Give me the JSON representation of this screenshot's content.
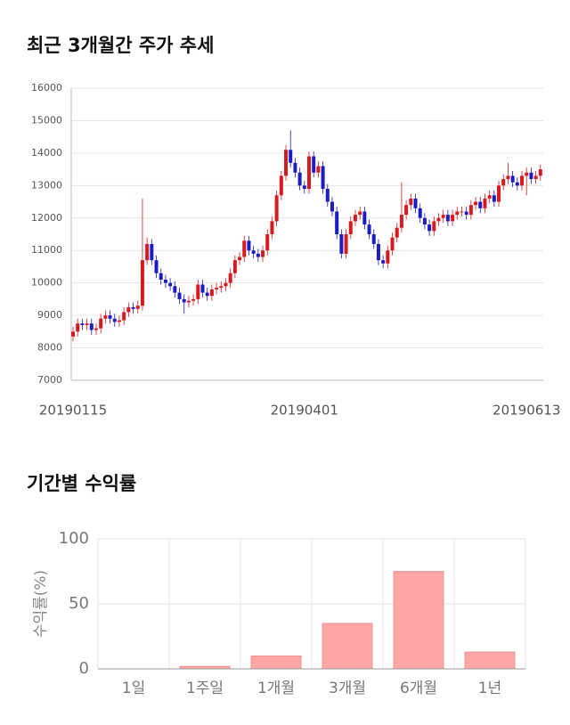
{
  "chart_data": [
    {
      "type": "candlestick",
      "title": "최근 3개월간 주가 추세",
      "categories": [
        "20190115",
        null,
        null,
        null,
        null,
        null,
        null,
        null,
        null,
        null,
        null,
        null,
        null,
        null,
        null,
        null,
        null,
        null,
        null,
        null,
        null,
        null,
        null,
        null,
        null,
        null,
        null,
        null,
        null,
        null,
        null,
        null,
        null,
        null,
        null,
        null,
        null,
        null,
        null,
        null,
        null,
        null,
        null,
        null,
        null,
        null,
        null,
        null,
        null,
        null,
        "20190401",
        null,
        null,
        null,
        null,
        null,
        null,
        null,
        null,
        null,
        null,
        null,
        null,
        null,
        null,
        null,
        null,
        null,
        null,
        null,
        null,
        null,
        null,
        null,
        null,
        null,
        null,
        null,
        null,
        null,
        null,
        null,
        null,
        null,
        null,
        null,
        null,
        null,
        null,
        null,
        null,
        null,
        null,
        null,
        null,
        null,
        null,
        null,
        "20190613",
        null,
        null,
        null
      ],
      "open": [
        8350,
        8500,
        8750,
        8700,
        8750,
        8550,
        8600,
        8900,
        9000,
        8900,
        8800,
        8850,
        9100,
        9250,
        9200,
        9300,
        10700,
        11200,
        10700,
        10300,
        10100,
        10000,
        9900,
        9700,
        9500,
        9400,
        9450,
        9500,
        9950,
        9700,
        9600,
        9800,
        9850,
        9900,
        10000,
        10300,
        10700,
        10800,
        11300,
        11000,
        10900,
        10800,
        11000,
        11500,
        11900,
        12700,
        13300,
        14100,
        13700,
        13400,
        13000,
        12900,
        13900,
        13400,
        13600,
        12900,
        12500,
        12200,
        11500,
        10900,
        11500,
        11900,
        12100,
        12200,
        11800,
        11500,
        11200,
        10700,
        10600,
        11000,
        11400,
        11700,
        12100,
        12400,
        12600,
        12300,
        12000,
        11800,
        11600,
        11900,
        12000,
        12100,
        11900,
        12100,
        12200,
        12200,
        12100,
        12400,
        12500,
        12300,
        12600,
        12700,
        12500,
        13000,
        13200,
        13300,
        13100,
        13000,
        13300,
        13400,
        13200,
        13300
      ],
      "high": [
        8650,
        8900,
        8900,
        8900,
        8900,
        8750,
        9050,
        9150,
        9150,
        9050,
        9000,
        9250,
        9400,
        9400,
        9450,
        12600,
        11400,
        11350,
        10850,
        10450,
        10250,
        10150,
        10050,
        9850,
        9650,
        9600,
        9650,
        10100,
        10100,
        9850,
        9950,
        10000,
        10050,
        10150,
        10450,
        10850,
        10950,
        11450,
        11450,
        11150,
        11050,
        11150,
        11650,
        12050,
        12850,
        13450,
        14250,
        14700,
        13850,
        13550,
        13150,
        14050,
        14050,
        13750,
        13750,
        13050,
        12650,
        12350,
        11650,
        11650,
        12050,
        12250,
        12350,
        12350,
        11950,
        11650,
        11350,
        10850,
        11150,
        11550,
        11850,
        13100,
        12550,
        12750,
        12750,
        12450,
        12150,
        11950,
        12050,
        12150,
        12250,
        12250,
        12250,
        12350,
        12350,
        12350,
        12550,
        12650,
        12650,
        12750,
        12850,
        12850,
        13150,
        13350,
        13700,
        13450,
        13250,
        13450,
        13550,
        13550,
        13450,
        13650
      ],
      "low": [
        8200,
        8350,
        8550,
        8550,
        8400,
        8400,
        8450,
        8750,
        8750,
        8650,
        8650,
        8700,
        8950,
        9050,
        9050,
        9150,
        10550,
        10550,
        10150,
        9950,
        9850,
        9750,
        9550,
        9350,
        9050,
        9250,
        9300,
        9350,
        9550,
        9450,
        9450,
        9650,
        9700,
        9750,
        9850,
        10150,
        10550,
        10650,
        10850,
        10750,
        10650,
        10650,
        10850,
        11350,
        11750,
        12550,
        13150,
        13550,
        13250,
        12850,
        12750,
        12750,
        13250,
        13250,
        12750,
        12350,
        12050,
        11350,
        10750,
        10750,
        11350,
        11750,
        11950,
        11650,
        11350,
        11050,
        10550,
        10450,
        10450,
        10850,
        11250,
        11550,
        11950,
        12250,
        12150,
        11850,
        11650,
        11450,
        11450,
        11750,
        11850,
        11750,
        11750,
        11950,
        12050,
        11950,
        11950,
        12250,
        12150,
        12150,
        12450,
        12350,
        12350,
        12850,
        13050,
        12950,
        12850,
        12850,
        12700,
        13050,
        13050,
        13150
      ],
      "close": [
        8500,
        8750,
        8700,
        8750,
        8550,
        8600,
        8900,
        9000,
        8900,
        8800,
        8850,
        9100,
        9250,
        9200,
        9300,
        10700,
        11200,
        10700,
        10300,
        10100,
        10000,
        9900,
        9700,
        9500,
        9400,
        9450,
        9500,
        9950,
        9700,
        9600,
        9800,
        9850,
        9900,
        10000,
        10300,
        10700,
        10800,
        11300,
        11000,
        10900,
        10800,
        11000,
        11500,
        11900,
        12700,
        13300,
        14100,
        13700,
        13400,
        13000,
        12900,
        13900,
        13400,
        13600,
        12900,
        12500,
        12200,
        11500,
        10900,
        11500,
        11900,
        12100,
        12200,
        11800,
        11500,
        11200,
        10700,
        10600,
        11000,
        11400,
        11700,
        12100,
        12400,
        12600,
        12300,
        12000,
        11800,
        11600,
        11900,
        12000,
        12100,
        11900,
        12100,
        12200,
        12200,
        12100,
        12400,
        12500,
        12300,
        12600,
        12700,
        12500,
        13000,
        13200,
        13300,
        13100,
        13000,
        13300,
        13400,
        13200,
        13300,
        13500
      ],
      "up_color": "#d71a1e",
      "down_color": "#1c1cc4",
      "ylim": [
        7000,
        16000
      ],
      "yticks": [
        7000,
        8000,
        9000,
        10000,
        11000,
        12000,
        13000,
        14000,
        15000,
        16000
      ],
      "grid": true
    },
    {
      "type": "bar",
      "title": "기간별 수익률",
      "y_label": "수익률(%)",
      "categories": [
        "1일",
        "1주일",
        "1개월",
        "3개월",
        "6개월",
        "1년"
      ],
      "values": [
        0,
        2,
        10,
        35,
        75,
        13
      ],
      "color": "#ffa5a5",
      "ylim": [
        0,
        100
      ],
      "yticks": [
        0,
        50,
        100
      ],
      "grid": true
    }
  ]
}
